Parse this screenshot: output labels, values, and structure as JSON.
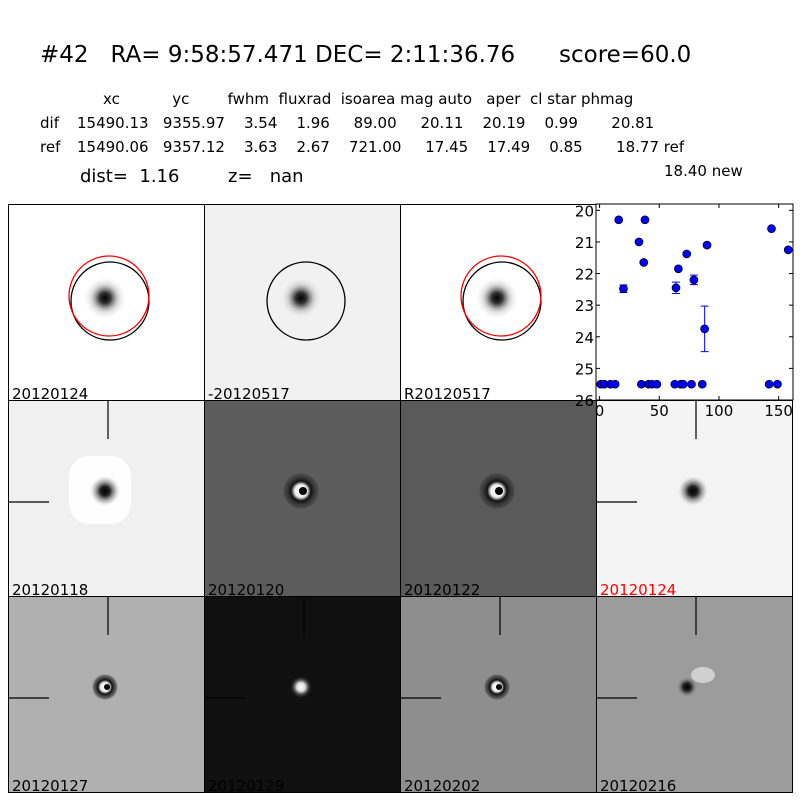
{
  "title": "#42   RA= 9:58:57.471 DEC= 2:11:36.76      score=60.0",
  "table": {
    "header": "xc           yc        fwhm  fluxrad  isoarea mag auto   aper  cl star phmag",
    "rows": [
      {
        "label": "dif",
        "values": "15490.13   9355.97    3.54    1.96     89.00     20.11    20.19    0.99       20.81"
      },
      {
        "label": "ref",
        "values": "15490.06   9357.12    3.63    2.67    721.00     17.45    17.49    0.85       18.77 ref"
      }
    ],
    "new_phmag": "18.40 new"
  },
  "info": {
    "dist": "dist=  1.16",
    "z": "z=   nan"
  },
  "panels": [
    {
      "label": "20120124",
      "bg": "#ffffff",
      "shade": "bright",
      "circles": true,
      "red_circle": true
    },
    {
      "label": "-20120517",
      "bg": "#f1f1f1",
      "shade": "bright",
      "circles": true,
      "red_circle": false
    },
    {
      "label": "R20120517",
      "bg": "#ffffff",
      "shade": "bright",
      "circles": true,
      "red_circle": true
    },
    {
      "label": "20120118",
      "bg": "#f0f0f0",
      "shade": "dark-core",
      "crosshair": true
    },
    {
      "label": "20120120",
      "bg": "#5c5c5c",
      "shade": "ring",
      "crosshair": false
    },
    {
      "label": "20120122",
      "bg": "#5a5a5a",
      "shade": "ring",
      "crosshair": false
    },
    {
      "label": "20120124",
      "bg": "#f4f4f4",
      "shade": "dark-core",
      "crosshair": true,
      "label_color": "#ff0000"
    },
    {
      "label": "20120127",
      "bg": "#b0b0b0",
      "shade": "ring-small",
      "crosshair": true
    },
    {
      "label": "20120129",
      "bg": "#101010",
      "shade": "bright-dot",
      "crosshair": true
    },
    {
      "label": "20120202",
      "bg": "#8e8e8e",
      "shade": "ring-small",
      "crosshair": true
    },
    {
      "label": "20120216",
      "bg": "#9c9c9c",
      "shade": "dipole",
      "crosshair": true
    }
  ],
  "chart_data": {
    "type": "scatter",
    "title": "",
    "xlabel": "",
    "ylabel": "",
    "xlim": [
      -3,
      162
    ],
    "ylim": [
      26,
      19.8
    ],
    "y_inverted": true,
    "xticks": [
      0,
      50,
      100,
      150
    ],
    "yticks": [
      20,
      21,
      22,
      23,
      24,
      25,
      26
    ],
    "marker_color": "#0000ff",
    "points": [
      {
        "x": 1,
        "y": 25.5
      },
      {
        "x": 4,
        "y": 25.5
      },
      {
        "x": 9,
        "y": 25.5
      },
      {
        "x": 13,
        "y": 25.5
      },
      {
        "x": 16,
        "y": 20.3
      },
      {
        "x": 20,
        "y": 22.48,
        "err": 0.12
      },
      {
        "x": 33,
        "y": 21.0
      },
      {
        "x": 35,
        "y": 25.5
      },
      {
        "x": 37,
        "y": 21.65
      },
      {
        "x": 38,
        "y": 20.3
      },
      {
        "x": 41,
        "y": 25.5
      },
      {
        "x": 44,
        "y": 25.5
      },
      {
        "x": 48,
        "y": 25.5
      },
      {
        "x": 63,
        "y": 25.5
      },
      {
        "x": 64,
        "y": 22.45,
        "err": 0.18
      },
      {
        "x": 66,
        "y": 21.85
      },
      {
        "x": 68,
        "y": 25.5
      },
      {
        "x": 70,
        "y": 25.5
      },
      {
        "x": 73,
        "y": 21.38
      },
      {
        "x": 77,
        "y": 25.5
      },
      {
        "x": 79,
        "y": 22.2,
        "err": 0.15
      },
      {
        "x": 86,
        "y": 25.5
      },
      {
        "x": 88,
        "y": 23.75,
        "err": 0.72
      },
      {
        "x": 90,
        "y": 21.1
      },
      {
        "x": 142,
        "y": 25.5
      },
      {
        "x": 144,
        "y": 20.58
      },
      {
        "x": 149,
        "y": 25.5
      },
      {
        "x": 158,
        "y": 21.25
      }
    ]
  }
}
